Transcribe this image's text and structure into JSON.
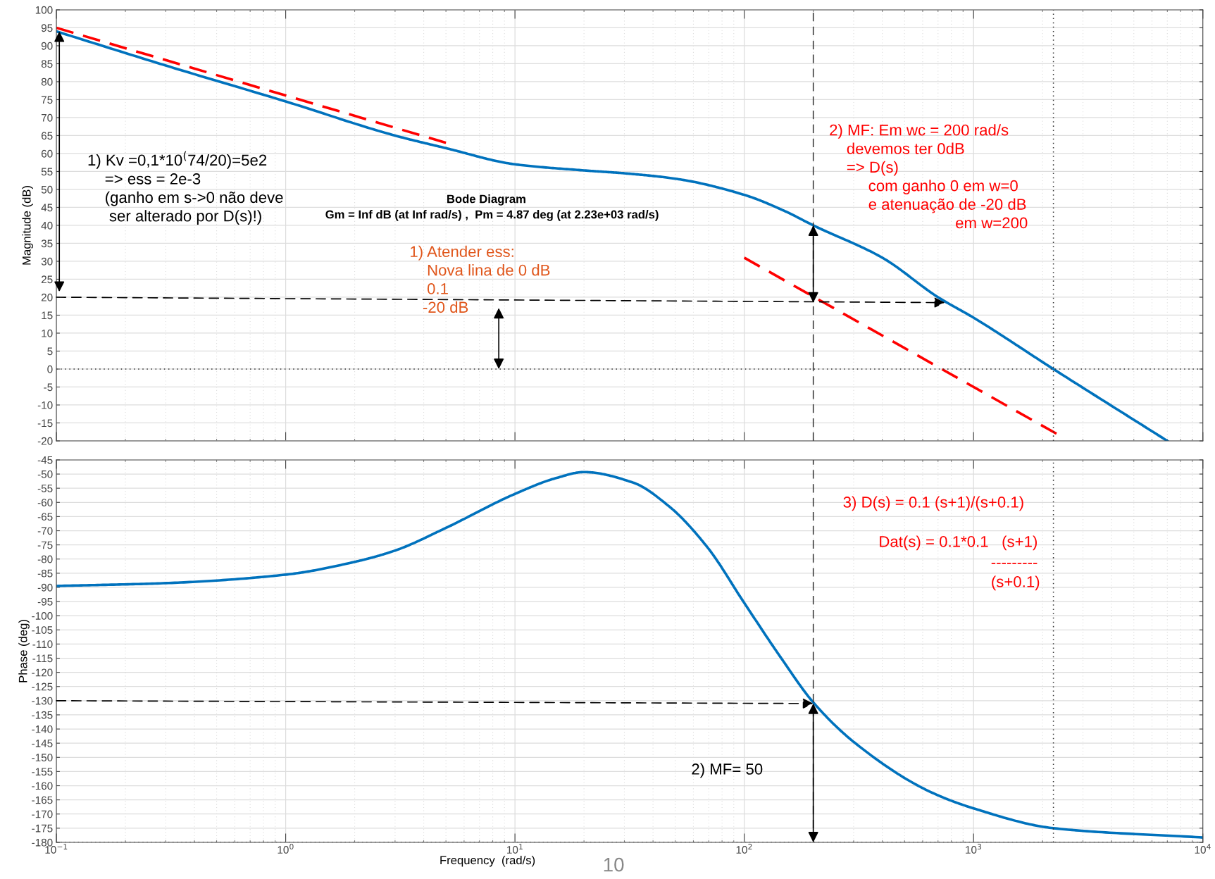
{
  "chart_data": [
    {
      "type": "line",
      "title": "Bode Diagram",
      "subtitle": "Gm = Inf dB (at Inf rad/s) ,  Pm = 4.87 deg (at 2.23e+03 rad/s)",
      "ylabel": "Magnitude (dB)",
      "x": [
        0.1,
        0.3,
        1,
        3,
        5,
        10,
        20,
        30,
        50,
        100,
        150,
        200,
        400,
        700,
        1000,
        2230,
        7000
      ],
      "series": [
        {
          "color": "#0072bd",
          "values": [
            94,
            84.5,
            74.5,
            65,
            61.5,
            57,
            55.3,
            54.5,
            53,
            48.5,
            44,
            40,
            31,
            20,
            14.3,
            0,
            -20
          ]
        },
        {
          "color": "#ff0000",
          "line_style": "dashed",
          "x": [
            0.1,
            5
          ],
          "values": [
            95,
            63
          ]
        },
        {
          "color": "#ff0000",
          "line_style": "dashed",
          "x": [
            100,
            2300
          ],
          "values": [
            31,
            -18
          ]
        }
      ],
      "ref_lines": [
        {
          "axis": "y",
          "value": 0,
          "color": "#333333",
          "line_style": "dotted"
        },
        {
          "axis": "x",
          "value": 200,
          "color": "#333333",
          "line_style": "dashed"
        },
        {
          "axis": "x",
          "value": 2230,
          "color": "#333333",
          "line_style": "dotted"
        }
      ],
      "annotations": [
        "1) Kv =0,1*10$^{(}$74/20)=5e2\n    => ess = 2e-3\n    (ganho em s->0 não deve\n     ser alterado por D(s)!)",
        "1) Atender ess:\n    Nova lina de 0 dB\n    0.1\n   -20 dB",
        "2) MF: Em wc = 200 rad/s\n    devemos ter 0dB\n    => D(s)\n         com ganho 0 em w=0\n         e atenuação de -20 dB\n                             em w=200"
      ],
      "log": "x",
      "xlim": [
        0.1,
        10000
      ],
      "xticks": [
        0.1,
        1,
        10,
        100,
        1000,
        10000
      ],
      "ylim": [
        -20,
        100
      ],
      "yticks": [
        -20,
        -15,
        -10,
        -5,
        0,
        5,
        10,
        15,
        20,
        25,
        30,
        35,
        40,
        45,
        50,
        55,
        60,
        65,
        70,
        75,
        80,
        85,
        90,
        95,
        100
      ],
      "tick_labels": "y",
      "grid": true
    },
    {
      "type": "line",
      "xlabel": "Frequency  (rad/s)",
      "ylabel": "Phase (deg)",
      "x": [
        0.1,
        0.3,
        1,
        2,
        3,
        5,
        10,
        15,
        20,
        32.7,
        47,
        69,
        100,
        145,
        200,
        305,
        641,
        1000,
        2230,
        10000
      ],
      "series": [
        {
          "color": "#0072bd",
          "values": [
            -89.5,
            -88.5,
            -85.5,
            -81,
            -77,
            -69,
            -57,
            -51.5,
            -49.3,
            -53,
            -61.4,
            -75.8,
            -95.5,
            -115,
            -130.6,
            -145,
            -162,
            -168,
            -175,
            -178.3
          ]
        }
      ],
      "ref_lines": [
        {
          "axis": "x",
          "value": 200,
          "color": "#333333",
          "line_style": "dashed"
        },
        {
          "axis": "x",
          "value": 2230,
          "color": "#333333",
          "line_style": "dotted"
        },
        {
          "axis": "y",
          "value": -180,
          "color": "#333333",
          "line_style": "dotted"
        }
      ],
      "annotations": [
        "3) D(s) = 0.1 (s+1)/(s+0.1)",
        "Dat(s) = 0.1*0.1   (s+1)",
        "---------",
        "(s+0.1)",
        "2) MF= 50",
        "10"
      ],
      "log": "x",
      "xlim": [
        0.1,
        10000
      ],
      "xticks": [
        {
          "value": 0.1,
          "label": "10$^{−1}$"
        },
        {
          "value": 1,
          "label": "10$^{0}$"
        },
        {
          "value": 10,
          "label": "10$^{1}$"
        },
        {
          "value": 100,
          "label": "10$^{2}$"
        },
        {
          "value": 1000,
          "label": "10$^{3}$"
        },
        {
          "value": 10000,
          "label": "10$^{4}$"
        }
      ],
      "ylim": [
        -180,
        -45
      ],
      "yticks": [
        -180,
        -175,
        -170,
        -165,
        -160,
        -155,
        -150,
        -145,
        -140,
        -135,
        -130,
        -125,
        -120,
        -115,
        -110,
        -105,
        -100,
        -95,
        -90,
        -85,
        -80,
        -75,
        -70,
        -65,
        -60,
        -55,
        -50,
        -45
      ],
      "grid": true
    }
  ]
}
